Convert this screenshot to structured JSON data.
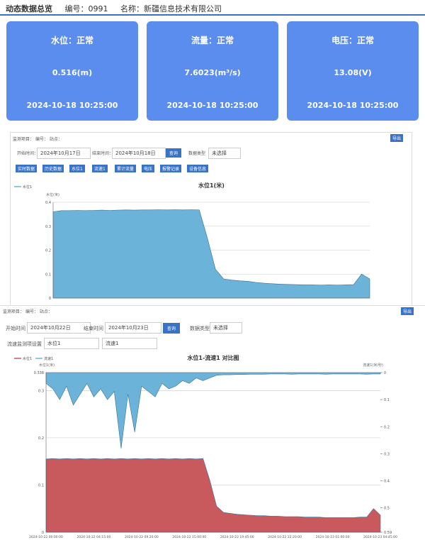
{
  "header": {
    "title": "动态数据总览",
    "code": "编号：0991",
    "name": "名称：新疆信息技术有限公司"
  },
  "cards": [
    {
      "title": "水位：正常",
      "value": "0.516(m)",
      "time": "2024-10-18 10:25:00"
    },
    {
      "title": "流量：正常",
      "value": "7.6023(m³/s)",
      "time": "2024-10-18 10:25:00"
    },
    {
      "title": "电压：正常",
      "value": "13.08(V)",
      "time": "2024-10-18 10:25:00"
    }
  ],
  "panel1": {
    "item": "监测项目：",
    "code": "编号：",
    "site": "站点：",
    "start": "开始时间：",
    "start_value": "2024年10月17日",
    "end": "结束时间：",
    "end_value": "2024年10月18日",
    "query": "查询",
    "type": "数据类型",
    "type_value": "未选择",
    "export": "导出",
    "buttons": [
      "实时数据",
      "历史数据",
      "水位1",
      "流速1",
      "累计流量",
      "电压",
      "报警记录",
      "设备信息"
    ]
  },
  "panel2": {
    "item": "监测项目：",
    "code": "编号：",
    "site": "站点：",
    "start": "开始时间",
    "start_value": "2024年10月22日",
    "end": "结束时间",
    "end_value": "2024年10月23日",
    "query": "查询",
    "type": "数据类型",
    "type_value": "未选择",
    "compare": "流速监测项设置",
    "sel1": "水位1",
    "sel2": "流速1",
    "export": "导出"
  },
  "chart_data": [
    {
      "type": "area",
      "title": "水位1(米)",
      "y_label": "水位(米)",
      "ylim": [
        0,
        0.4
      ],
      "yticks": [
        0,
        0.1,
        0.2,
        0.3,
        0.4
      ],
      "grid": true,
      "series": [
        {
          "name": "水位1",
          "color": "#6cb3da",
          "values": [
            0.36,
            0.365,
            0.365,
            0.366,
            0.365,
            0.366,
            0.367,
            0.366,
            0.367,
            0.368,
            0.367,
            0.368,
            0.368,
            0.369,
            0.368,
            0.369,
            0.368,
            0.369,
            0.368,
            0.25,
            0.12,
            0.08,
            0.075,
            0.072,
            0.07,
            0.065,
            0.062,
            0.06,
            0.058,
            0.057,
            0.056,
            0.055,
            0.055,
            0.054,
            0.055,
            0.054,
            0.055,
            0.056,
            0.1,
            0.08
          ]
        }
      ]
    },
    {
      "type": "area",
      "title": "水位1-流速1 对比图",
      "y_label": "水位1(米)",
      "y2_label": "流速1(米/秒)",
      "ylim": [
        0,
        0.338
      ],
      "yticks": [
        0,
        0.1,
        0.2,
        0.3,
        0.338
      ],
      "y2lim": [
        0,
        0.59
      ],
      "y2ticks": [
        0,
        0.1,
        0.2,
        0.3,
        0.4,
        0.5,
        0.59
      ],
      "y2_inverted": true,
      "grid": true,
      "categories": [
        "2024-10-22 00:00:00",
        null,
        null,
        null,
        null,
        null,
        null,
        "2024-10-22 04:15:00",
        null,
        null,
        null,
        null,
        null,
        null,
        "2024-10-22 09:20:00",
        null,
        null,
        null,
        null,
        null,
        null,
        "2024-10-22 15:00:00",
        null,
        null,
        null,
        null,
        null,
        null,
        "2024-10-22 19:45:00",
        null,
        null,
        null,
        null,
        null,
        null,
        "2024-10-22 22:20:00",
        null,
        null,
        null,
        null,
        null,
        null,
        "2024-10-23 01:00:00",
        null,
        null,
        null,
        null,
        null,
        null,
        "2024-10-23 04:45:00"
      ],
      "series": [
        {
          "name": "水位1",
          "color": "#c85a5e",
          "values": [
            0.155,
            0.156,
            0.155,
            0.156,
            0.155,
            0.156,
            0.155,
            0.156,
            0.155,
            0.156,
            0.155,
            0.156,
            0.155,
            0.156,
            0.155,
            0.156,
            0.155,
            0.156,
            0.155,
            0.156,
            0.155,
            0.156,
            0.155,
            0.156,
            0.11,
            0.055,
            0.042,
            0.04,
            0.038,
            0.037,
            0.036,
            0.035,
            0.035,
            0.034,
            0.034,
            0.033,
            0.033,
            0.033,
            0.032,
            0.032,
            0.032,
            0.031,
            0.031,
            0.031,
            0.031,
            0.031,
            0.032,
            0.032,
            0.05,
            0.036
          ]
        },
        {
          "name": "流速1",
          "color": "#6cb3da",
          "axis": "y2",
          "values": [
            0.04,
            0.06,
            0.1,
            0.05,
            0.12,
            0.08,
            0.04,
            0.09,
            0.06,
            0.1,
            0.07,
            0.28,
            0.08,
            0.22,
            0.05,
            0.07,
            0.09,
            0.04,
            0.06,
            0.05,
            0.03,
            0.04,
            0.02,
            0.03,
            0.02,
            0.01,
            0.008,
            0.008,
            0.007,
            0.007,
            0.006,
            0.006,
            0.006,
            0.005,
            0.005,
            0.005,
            0.006,
            0.005,
            0.005,
            0.005,
            0.005,
            0.006,
            0.005,
            0.005,
            0.005,
            0.005,
            0.005,
            0.006,
            0.005,
            0.005
          ]
        }
      ]
    }
  ]
}
